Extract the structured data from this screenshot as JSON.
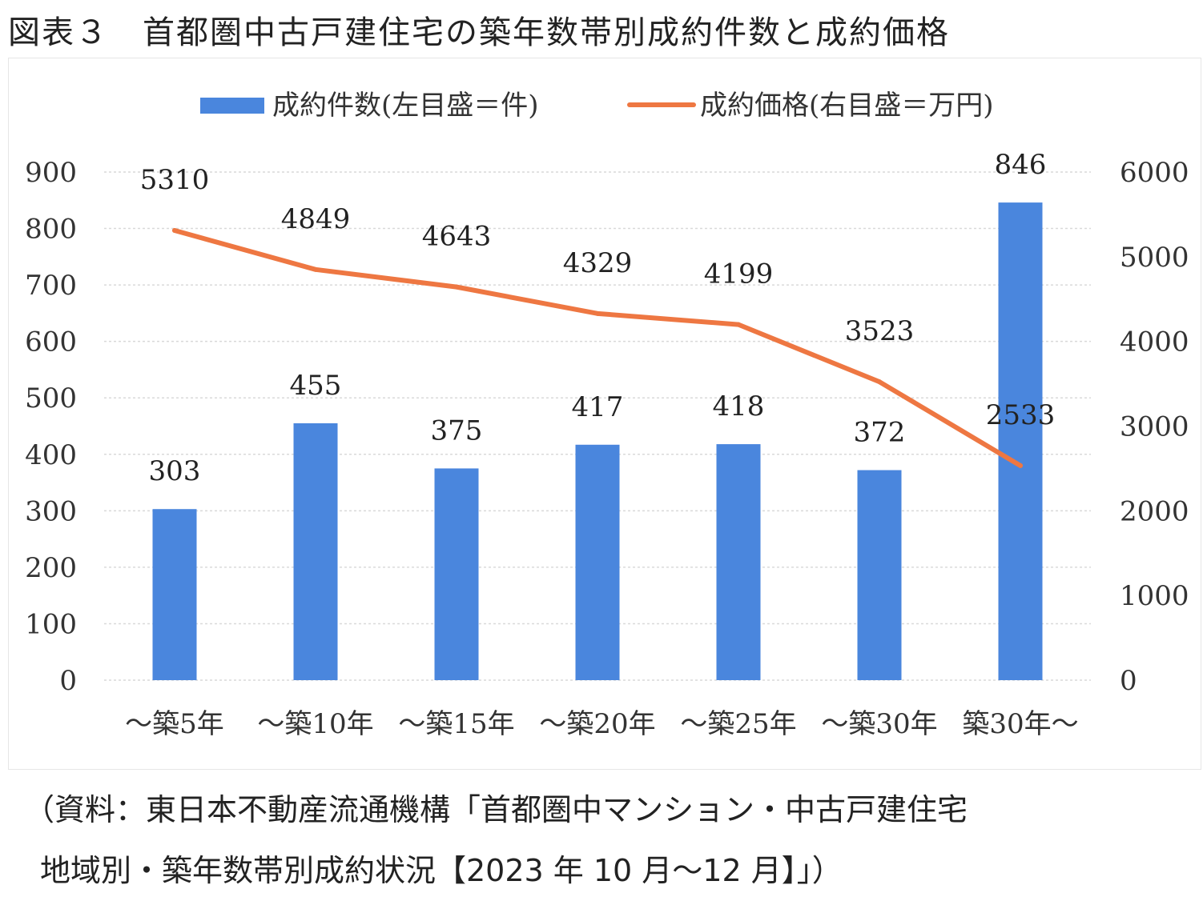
{
  "figure_title": "図表３　首都圏中古戸建住宅の築年数帯別成約件数と成約価格",
  "source_line1": "（資料：東日本不動産流通機構「首都圏中マンション・中古戸建住宅",
  "source_line2": "地域別・築年数帯別成約状況【2023 年 10 月～12 月】」）",
  "colors": {
    "bar": "#4a86dd",
    "line": "#ee7742",
    "grid": "#d9d9d9"
  },
  "chart_data": {
    "type": "bar",
    "categories": [
      "～築5年",
      "～築10年",
      "～築15年",
      "～築20年",
      "～築25年",
      "～築30年",
      "築30年～"
    ],
    "series": [
      {
        "name": "成約件数(左目盛＝件)",
        "type": "bar",
        "axis": "left",
        "values": [
          303,
          455,
          375,
          417,
          418,
          372,
          846
        ]
      },
      {
        "name": "成約価格(右目盛＝万円)",
        "type": "line",
        "axis": "right",
        "values": [
          5310,
          4849,
          4643,
          4329,
          4199,
          3523,
          2533
        ]
      }
    ],
    "y_left": {
      "min": 0,
      "max": 900,
      "ticks": [
        0,
        100,
        200,
        300,
        400,
        500,
        600,
        700,
        800,
        900
      ]
    },
    "y_right": {
      "min": 0,
      "max": 6000,
      "ticks": [
        0,
        1000,
        2000,
        3000,
        4000,
        5000,
        6000
      ]
    },
    "grid": true,
    "legend_position": "top"
  }
}
